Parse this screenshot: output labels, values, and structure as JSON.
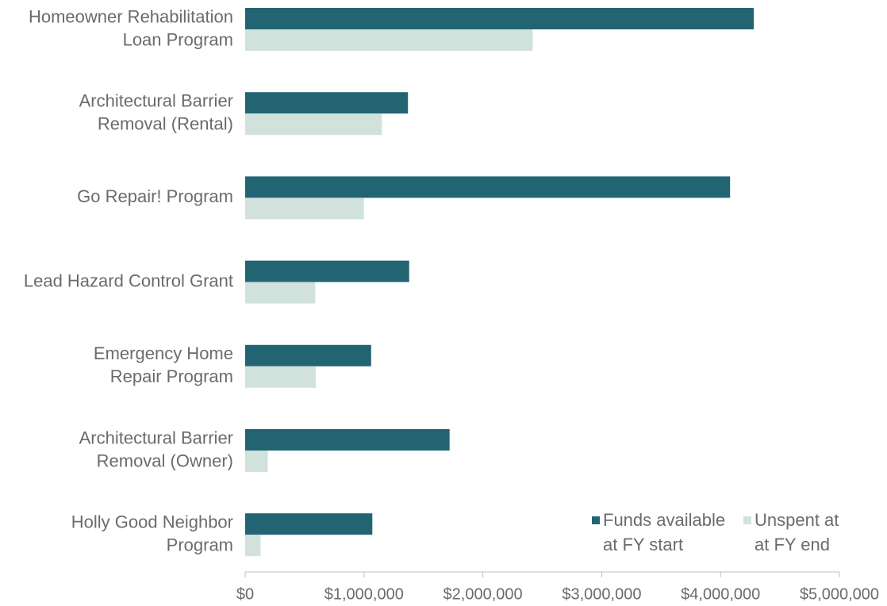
{
  "chart_data": {
    "type": "bar",
    "orientation": "horizontal",
    "categories": [
      [
        "Homeowner Rehabilitation",
        "Loan Program"
      ],
      [
        "Architectural Barrier",
        "Removal (Rental)"
      ],
      [
        "Go Repair! Program"
      ],
      [
        "Lead Hazard Control Grant"
      ],
      [
        "Emergency Home",
        "Repair Program"
      ],
      [
        "Architectural Barrier",
        "Removal (Owner)"
      ],
      [
        "Holly Good Neighbor",
        "Program"
      ]
    ],
    "series": [
      {
        "name_lines": [
          "Funds available",
          "at FY start"
        ],
        "color": "#236473",
        "values": [
          4280000,
          1370000,
          4080000,
          1380000,
          1060000,
          1720000,
          1070000
        ]
      },
      {
        "name_lines": [
          "Unspent at",
          "at FY end"
        ],
        "color": "#d1e2dc",
        "values": [
          2420000,
          1150000,
          1000000,
          590000,
          595000,
          190000,
          130000
        ]
      }
    ],
    "xlim": [
      0,
      5000000
    ],
    "ticks": [
      0,
      1000000,
      2000000,
      3000000,
      4000000,
      5000000
    ],
    "tick_labels": [
      "$0",
      "$1,000,000",
      "$2,000,000",
      "$3,000,000",
      "$4,000,000",
      "$5,000,000"
    ],
    "title": "",
    "xlabel": "",
    "ylabel": "",
    "grid": false,
    "legend_position": "bottom-right"
  }
}
